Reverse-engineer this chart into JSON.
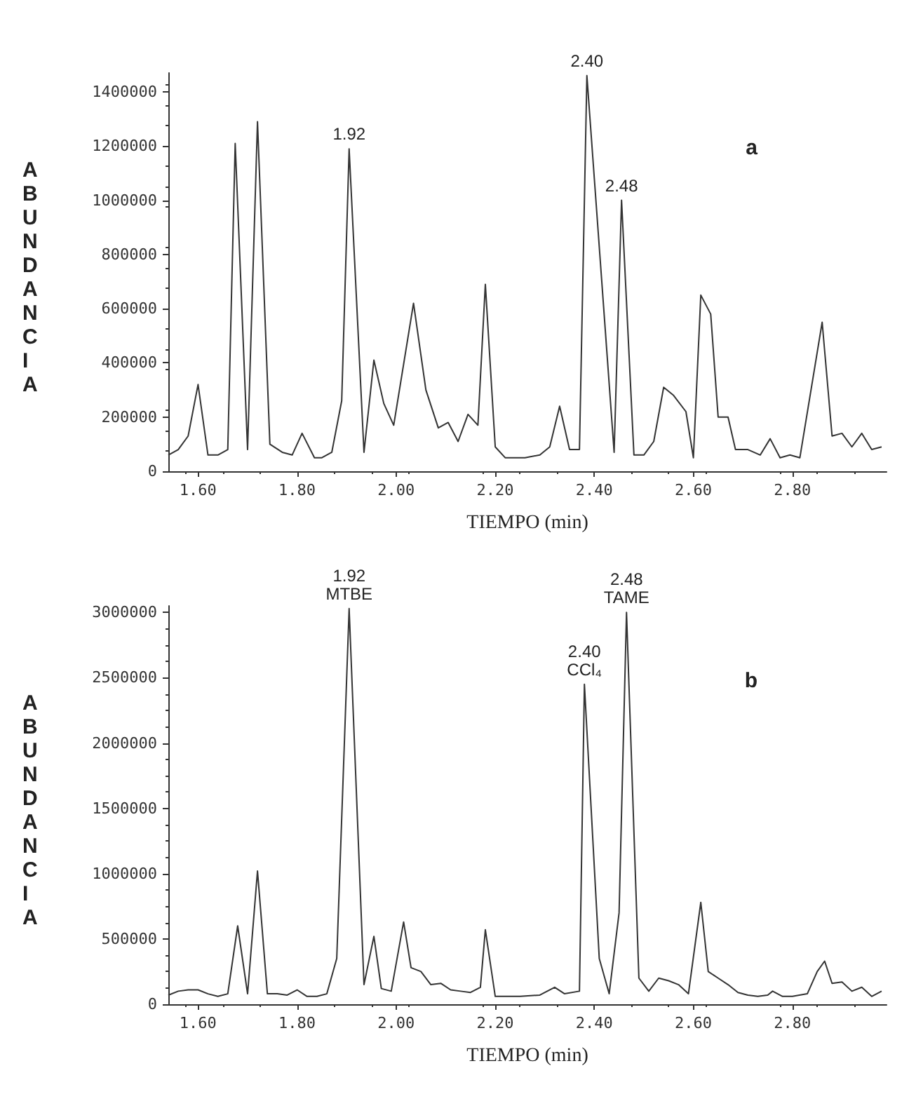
{
  "chart_data": [
    {
      "type": "line",
      "xlabel": "TIEMPO (min)",
      "ylabel": "ABUNDANCIA",
      "grid": false,
      "marker": "none",
      "line_style": "solid",
      "xlim": [
        1.54,
        2.99
      ],
      "ylim": [
        0,
        1470000
      ],
      "xticks": [
        {
          "value": 1.6,
          "label": "1.60"
        },
        {
          "value": 1.8,
          "label": "1.80"
        },
        {
          "value": 2.0,
          "label": "2.00"
        },
        {
          "value": 2.2,
          "label": "2.20"
        },
        {
          "value": 2.4,
          "label": "2.40"
        },
        {
          "value": 2.6,
          "label": "2.60"
        },
        {
          "value": 2.8,
          "label": "2.80"
        }
      ],
      "yticks": [
        0,
        200000,
        400000,
        600000,
        800000,
        1000000,
        1200000,
        1400000
      ],
      "annotations": [
        {
          "text": "1.92",
          "x": 1.905,
          "y": 1190000
        },
        {
          "text": "2.40",
          "x": 2.385,
          "y": 1460000
        },
        {
          "text": "2.48",
          "x": 2.455,
          "y": 1000000
        },
        "a"
      ],
      "series": [
        {
          "color": "#333333",
          "x": [
            1.54,
            1.56,
            1.58,
            1.6,
            1.62,
            1.64,
            1.66,
            1.675,
            1.7,
            1.72,
            1.745,
            1.77,
            1.79,
            1.81,
            1.835,
            1.85,
            1.87,
            1.89,
            1.905,
            1.935,
            1.955,
            1.975,
            1.995,
            2.035,
            2.06,
            2.085,
            2.105,
            2.125,
            2.145,
            2.165,
            2.18,
            2.2,
            2.22,
            2.26,
            2.29,
            2.31,
            2.33,
            2.35,
            2.37,
            2.385,
            2.44,
            2.455,
            2.48,
            2.5,
            2.52,
            2.54,
            2.56,
            2.585,
            2.6,
            2.615,
            2.635,
            2.65,
            2.67,
            2.685,
            2.71,
            2.735,
            2.755,
            2.775,
            2.795,
            2.815,
            2.86,
            2.88,
            2.9,
            2.92,
            2.94,
            2.96,
            2.98
          ],
          "values": [
            60000,
            80000,
            130000,
            320000,
            60000,
            60000,
            80000,
            1210000,
            80000,
            1290000,
            100000,
            70000,
            60000,
            140000,
            50000,
            50000,
            70000,
            260000,
            1190000,
            70000,
            410000,
            250000,
            170000,
            620000,
            300000,
            160000,
            180000,
            110000,
            210000,
            170000,
            690000,
            90000,
            50000,
            50000,
            60000,
            90000,
            240000,
            80000,
            80000,
            1460000,
            70000,
            1000000,
            60000,
            60000,
            110000,
            310000,
            280000,
            220000,
            50000,
            650000,
            580000,
            200000,
            200000,
            80000,
            80000,
            60000,
            120000,
            50000,
            60000,
            50000,
            550000,
            130000,
            140000,
            90000,
            140000,
            80000,
            90000
          ]
        }
      ]
    },
    {
      "type": "line",
      "xlabel": "TIEMPO (min)",
      "ylabel": "ABUNDANCIA",
      "grid": false,
      "marker": "none",
      "line_style": "solid",
      "xlim": [
        1.54,
        2.99
      ],
      "ylim": [
        0,
        3050000
      ],
      "xticks": [
        {
          "value": 1.6,
          "label": "1.60"
        },
        {
          "value": 1.8,
          "label": "1.80"
        },
        {
          "value": 2.0,
          "label": "2.00"
        },
        {
          "value": 2.2,
          "label": "2.20"
        },
        {
          "value": 2.4,
          "label": "2.40"
        },
        {
          "value": 2.6,
          "label": "2.60"
        },
        {
          "value": 2.8,
          "label": "2.80"
        }
      ],
      "yticks": [
        0,
        500000,
        1000000,
        1500000,
        2000000,
        2500000,
        3000000
      ],
      "annotations": [
        {
          "text": "1.92\nMTBE",
          "x": 1.905,
          "y": 3030000
        },
        {
          "text": "2.40\nCCl₄",
          "x": 2.38,
          "y": 2450000
        },
        {
          "text": "2.48\nTAME",
          "x": 2.465,
          "y": 3000000
        },
        "b"
      ],
      "series": [
        {
          "color": "#333333",
          "x": [
            1.54,
            1.56,
            1.58,
            1.6,
            1.62,
            1.64,
            1.66,
            1.68,
            1.7,
            1.72,
            1.74,
            1.76,
            1.78,
            1.8,
            1.82,
            1.84,
            1.86,
            1.88,
            1.905,
            1.935,
            1.955,
            1.97,
            1.99,
            2.015,
            2.03,
            2.05,
            2.07,
            2.09,
            2.11,
            2.13,
            2.15,
            2.17,
            2.18,
            2.2,
            2.25,
            2.29,
            2.32,
            2.34,
            2.37,
            2.38,
            2.41,
            2.43,
            2.45,
            2.465,
            2.49,
            2.51,
            2.53,
            2.55,
            2.57,
            2.59,
            2.615,
            2.63,
            2.65,
            2.67,
            2.69,
            2.71,
            2.73,
            2.75,
            2.76,
            2.78,
            2.8,
            2.83,
            2.85,
            2.865,
            2.88,
            2.9,
            2.92,
            2.94,
            2.96,
            2.98
          ],
          "values": [
            70000,
            100000,
            110000,
            110000,
            80000,
            60000,
            80000,
            600000,
            80000,
            1020000,
            80000,
            80000,
            70000,
            110000,
            60000,
            60000,
            80000,
            350000,
            3030000,
            150000,
            520000,
            120000,
            100000,
            630000,
            280000,
            250000,
            150000,
            160000,
            110000,
            100000,
            90000,
            130000,
            570000,
            60000,
            60000,
            70000,
            130000,
            80000,
            100000,
            2450000,
            350000,
            80000,
            700000,
            3000000,
            200000,
            100000,
            200000,
            180000,
            150000,
            80000,
            780000,
            250000,
            200000,
            150000,
            90000,
            70000,
            60000,
            70000,
            100000,
            60000,
            60000,
            80000,
            250000,
            330000,
            160000,
            170000,
            100000,
            130000,
            60000,
            100000
          ]
        }
      ]
    }
  ]
}
